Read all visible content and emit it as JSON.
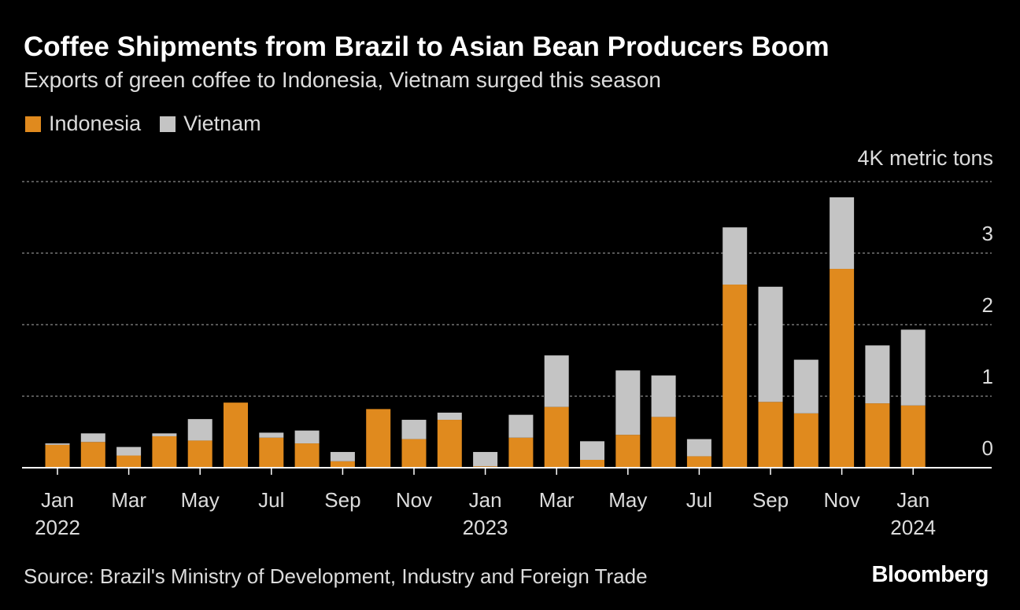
{
  "header": {
    "title": "Coffee Shipments from Brazil to Asian Bean Producers Boom",
    "subtitle": "Exports of green coffee to Indonesia, Vietnam surged this season"
  },
  "legend": {
    "indonesia": "Indonesia",
    "vietnam": "Vietnam"
  },
  "colors": {
    "indonesia": "#e08a1e",
    "vietnam": "#c4c4c4",
    "background": "#000000"
  },
  "footer": {
    "source": "Source: Brazil's Ministry of Development, Industry and Foreign Trade",
    "brand": "Bloomberg"
  },
  "chart_data": {
    "type": "bar",
    "stacked": true,
    "title": "Coffee Shipments from Brazil to Asian Bean Producers Boom",
    "subtitle": "Exports of green coffee to Indonesia, Vietnam surged this season",
    "ylabel": "4K metric tons",
    "ylim": [
      0,
      4
    ],
    "yticks": [
      0,
      1,
      2,
      3
    ],
    "grid": true,
    "legend_position": "top-left",
    "categories": [
      "Jan 2022",
      "Feb 2022",
      "Mar 2022",
      "Apr 2022",
      "May 2022",
      "Jun 2022",
      "Jul 2022",
      "Aug 2022",
      "Sep 2022",
      "Oct 2022",
      "Nov 2022",
      "Dec 2022",
      "Jan 2023",
      "Feb 2023",
      "Mar 2023",
      "Apr 2023",
      "May 2023",
      "Jun 2023",
      "Jul 2023",
      "Aug 2023",
      "Sep 2023",
      "Oct 2023",
      "Nov 2023",
      "Dec 2023",
      "Jan 2024"
    ],
    "x_tick_labels": [
      {
        "index": 0,
        "month": "Jan",
        "year": "2022"
      },
      {
        "index": 2,
        "month": "Mar",
        "year": ""
      },
      {
        "index": 4,
        "month": "May",
        "year": ""
      },
      {
        "index": 6,
        "month": "Jul",
        "year": ""
      },
      {
        "index": 8,
        "month": "Sep",
        "year": ""
      },
      {
        "index": 10,
        "month": "Nov",
        "year": ""
      },
      {
        "index": 12,
        "month": "Jan",
        "year": "2023"
      },
      {
        "index": 14,
        "month": "Mar",
        "year": ""
      },
      {
        "index": 16,
        "month": "May",
        "year": ""
      },
      {
        "index": 18,
        "month": "Jul",
        "year": ""
      },
      {
        "index": 20,
        "month": "Sep",
        "year": ""
      },
      {
        "index": 22,
        "month": "Nov",
        "year": ""
      },
      {
        "index": 24,
        "month": "Jan",
        "year": "2024"
      }
    ],
    "series": [
      {
        "name": "Indonesia",
        "values": [
          0.32,
          0.36,
          0.17,
          0.44,
          0.38,
          0.91,
          0.42,
          0.34,
          0.09,
          0.82,
          0.4,
          0.67,
          0.02,
          0.42,
          0.85,
          0.11,
          0.46,
          0.71,
          0.16,
          2.56,
          0.92,
          0.76,
          2.78,
          0.9,
          0.87
        ]
      },
      {
        "name": "Vietnam",
        "values": [
          0.02,
          0.12,
          0.12,
          0.04,
          0.3,
          0.0,
          0.07,
          0.18,
          0.13,
          0.0,
          0.27,
          0.1,
          0.2,
          0.32,
          0.72,
          0.26,
          0.9,
          0.58,
          0.24,
          0.8,
          1.61,
          0.75,
          1.0,
          0.81,
          1.06
        ]
      }
    ]
  }
}
